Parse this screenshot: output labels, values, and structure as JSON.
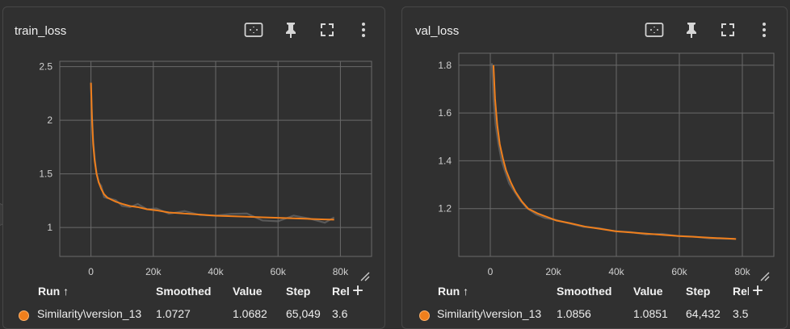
{
  "panels": [
    {
      "id": "train",
      "title": "train_loss",
      "table": {
        "headers": {
          "run": "Run ↑",
          "smoothed": "Smoothed",
          "value": "Value",
          "step": "Step",
          "rel": "Rel"
        },
        "row": {
          "run": "Similarity\\version_13",
          "smoothed": "1.0727",
          "value": "1.0682",
          "step": "65,049",
          "rel": "3.6"
        }
      }
    },
    {
      "id": "val",
      "title": "val_loss",
      "table": {
        "headers": {
          "run": "Run ↑",
          "smoothed": "Smoothed",
          "value": "Value",
          "step": "Step",
          "rel": "Rel"
        },
        "row": {
          "run": "Similarity\\version_13",
          "smoothed": "1.0856",
          "value": "1.0851",
          "step": "64,432",
          "rel": "3.5"
        }
      }
    }
  ],
  "toolbar_icons": [
    "fit-domain-icon",
    "pin-icon",
    "fullscreen-icon",
    "more-vert-icon"
  ],
  "add_column_label": "+",
  "colors": {
    "series": "#f07f1c",
    "raw": "#6b6b6b",
    "grid": "#6a6a6a",
    "axis_text": "#d0d0d0"
  },
  "chart_data": [
    {
      "type": "line",
      "title": "train_loss",
      "xlabel": "",
      "ylabel": "",
      "xlim": [
        -10000,
        90000
      ],
      "ylim": [
        0.73,
        2.55
      ],
      "xticks": [
        "0",
        "20k",
        "40k",
        "60k",
        "80k"
      ],
      "xtick_values": [
        0,
        20000,
        40000,
        60000,
        80000
      ],
      "yticks": [
        "1",
        "1.5",
        "2",
        "2.5"
      ],
      "ytick_values": [
        1,
        1.5,
        2,
        2.5
      ],
      "grid": true,
      "series": [
        {
          "name": "Similarity\\version_13",
          "x": [
            0,
            300,
            700,
            1200,
            1800,
            2500,
            3300,
            4200,
            5200,
            6500,
            8000,
            10000,
            12500,
            15000,
            18000,
            21000,
            25000,
            30000,
            35000,
            40000,
            45000,
            50000,
            55000,
            60000,
            65000,
            70000,
            75000,
            78000
          ],
          "y": [
            2.35,
            2.05,
            1.78,
            1.62,
            1.5,
            1.42,
            1.36,
            1.31,
            1.28,
            1.26,
            1.24,
            1.22,
            1.2,
            1.19,
            1.17,
            1.16,
            1.14,
            1.13,
            1.12,
            1.11,
            1.105,
            1.1,
            1.095,
            1.09,
            1.085,
            1.08,
            1.075,
            1.073
          ]
        }
      ]
    },
    {
      "type": "line",
      "title": "val_loss",
      "xlabel": "",
      "ylabel": "",
      "xlim": [
        -10000,
        90000
      ],
      "ylim": [
        1.0,
        1.85
      ],
      "xticks": [
        "0",
        "20k",
        "40k",
        "60k",
        "80k"
      ],
      "xtick_values": [
        0,
        20000,
        40000,
        60000,
        80000
      ],
      "yticks": [
        "1.2",
        "1.4",
        "1.6",
        "1.8"
      ],
      "ytick_values": [
        1.2,
        1.4,
        1.6,
        1.8
      ],
      "grid": true,
      "series": [
        {
          "name": "Similarity\\version_13",
          "x": [
            1000,
            1500,
            2200,
            3000,
            4000,
            5000,
            6500,
            8000,
            10000,
            12000,
            15000,
            18000,
            21000,
            25000,
            30000,
            35000,
            40000,
            45000,
            50000,
            55000,
            60000,
            65000,
            70000,
            75000,
            78000
          ],
          "y": [
            1.8,
            1.66,
            1.55,
            1.47,
            1.41,
            1.36,
            1.31,
            1.27,
            1.23,
            1.2,
            1.18,
            1.165,
            1.15,
            1.14,
            1.125,
            1.115,
            1.105,
            1.1,
            1.095,
            1.09,
            1.085,
            1.082,
            1.078,
            1.075,
            1.073
          ]
        }
      ]
    }
  ]
}
